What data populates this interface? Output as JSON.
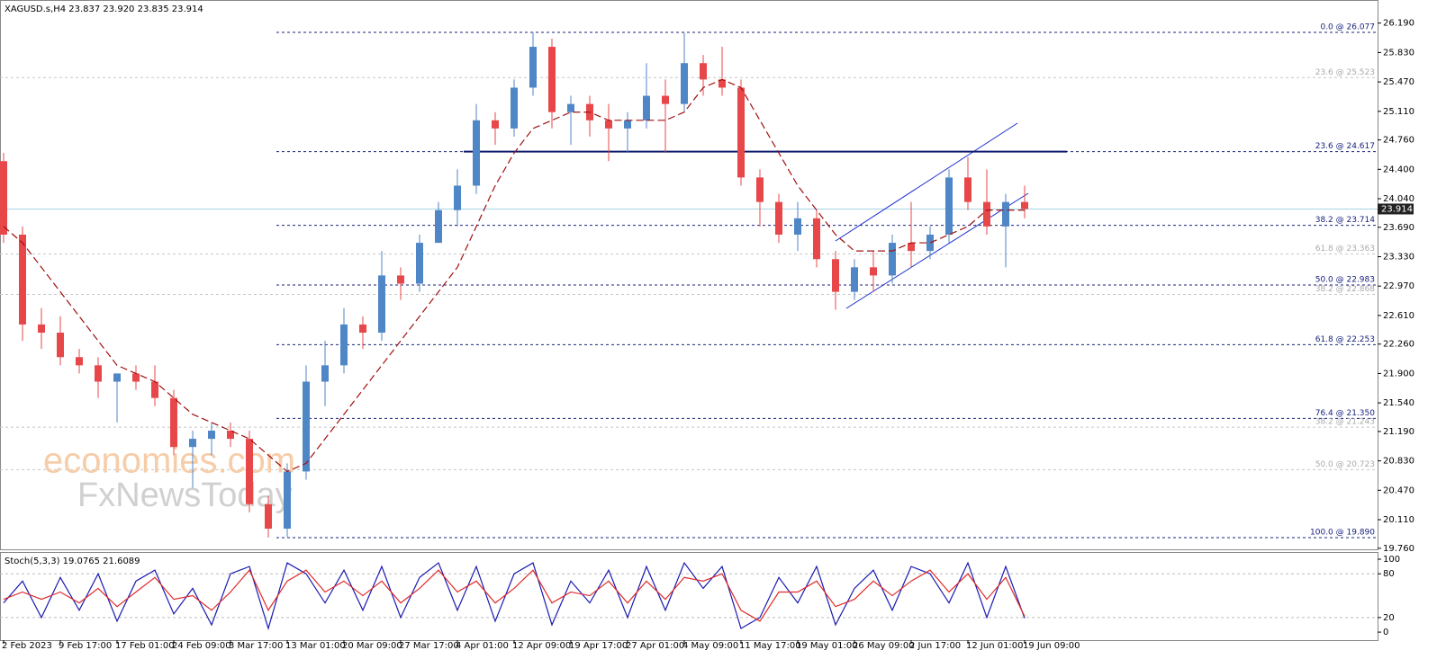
{
  "chart_data": {
    "type": "candlestick",
    "title": "XAGUSD.s,H4  23.837 23.920 23.835 23.914",
    "categories": [
      "2 Feb 2023",
      null,
      null,
      "9 Feb 17:00",
      null,
      null,
      "17 Feb 01:00",
      null,
      null,
      "24 Feb 09:00",
      null,
      null,
      "3 Mar 17:00",
      null,
      null,
      "13 Mar 01:00",
      null,
      null,
      "20 Mar 09:00",
      null,
      null,
      "27 Mar 17:00",
      null,
      null,
      "4 Apr 01:00",
      null,
      null,
      "12 Apr 09:00",
      null,
      null,
      "19 Apr 17:00",
      null,
      null,
      "27 Apr 01:00",
      null,
      null,
      "4 May 09:00",
      null,
      null,
      "11 May 17:00",
      null,
      null,
      "19 May 01:00",
      null,
      null,
      "26 May 09:00",
      null,
      null,
      "2 Jun 17:00",
      null,
      null,
      "12 Jun 01:00",
      null,
      null,
      "19 Jun 09:00"
    ],
    "open": [
      24.5,
      23.6,
      22.5,
      22.4,
      22.1,
      22.0,
      21.8,
      21.9,
      21.8,
      21.6,
      21.0,
      21.1,
      21.2,
      21.1,
      20.3,
      20.0,
      20.7,
      21.8,
      22.0,
      22.5,
      22.4,
      23.1,
      23.0,
      23.5,
      23.9,
      24.2,
      25.0,
      24.9,
      25.4,
      25.9,
      25.1,
      25.2,
      25.0,
      24.9,
      25.0,
      25.3,
      25.2,
      25.7,
      25.5,
      25.4,
      24.3,
      24.0,
      23.6,
      23.8,
      23.3,
      22.9,
      23.2,
      23.1,
      23.5,
      23.4,
      23.6,
      24.3,
      24.0,
      23.7,
      24.0
    ],
    "high": [
      24.6,
      23.7,
      22.7,
      22.6,
      22.2,
      22.1,
      21.9,
      22.0,
      22.0,
      21.7,
      21.2,
      21.3,
      21.3,
      21.2,
      20.4,
      20.8,
      22.0,
      22.3,
      22.7,
      22.6,
      23.4,
      23.2,
      23.6,
      24.0,
      24.4,
      25.2,
      25.1,
      25.5,
      26.077,
      26.0,
      25.3,
      25.3,
      25.2,
      25.1,
      25.7,
      25.5,
      26.07,
      25.8,
      25.9,
      25.5,
      24.4,
      24.1,
      24.0,
      23.9,
      23.4,
      23.3,
      23.4,
      23.6,
      24.0,
      23.7,
      24.4,
      24.55,
      24.4,
      24.1,
      24.2
    ],
    "low": [
      23.5,
      22.3,
      22.2,
      22.0,
      21.9,
      21.6,
      21.3,
      21.7,
      21.5,
      20.9,
      20.5,
      20.9,
      21.0,
      20.2,
      19.89,
      19.9,
      20.6,
      21.5,
      21.9,
      22.2,
      22.3,
      22.8,
      22.9,
      23.5,
      23.7,
      24.1,
      24.7,
      24.8,
      25.3,
      24.9,
      24.7,
      24.8,
      24.5,
      24.6,
      24.9,
      24.6,
      25.1,
      25.3,
      25.3,
      24.2,
      23.7,
      23.5,
      23.4,
      23.2,
      22.68,
      22.8,
      22.9,
      23.0,
      23.2,
      23.3,
      23.5,
      23.9,
      23.6,
      23.2,
      23.8
    ],
    "close": [
      23.6,
      22.5,
      22.4,
      22.1,
      22.0,
      21.8,
      21.9,
      21.8,
      21.6,
      21.0,
      21.1,
      21.2,
      21.1,
      20.3,
      20.0,
      20.7,
      21.8,
      22.0,
      22.5,
      22.4,
      23.1,
      23.0,
      23.5,
      23.9,
      24.2,
      25.0,
      24.9,
      25.4,
      25.9,
      25.1,
      25.2,
      25.0,
      24.9,
      25.0,
      25.3,
      25.2,
      25.7,
      25.5,
      25.4,
      24.3,
      24.0,
      23.6,
      23.8,
      23.3,
      22.9,
      23.2,
      23.1,
      23.5,
      23.4,
      23.6,
      24.3,
      24.0,
      23.7,
      24.0,
      23.914
    ],
    "up_color": "#4f86c6",
    "down_color": "#e8474a",
    "moving_average": {
      "color": "#a01010",
      "values": [
        23.7,
        23.5,
        23.2,
        22.9,
        22.6,
        22.3,
        22.0,
        21.9,
        21.8,
        21.6,
        21.4,
        21.3,
        21.2,
        21.1,
        20.9,
        20.7,
        20.8,
        21.1,
        21.4,
        21.7,
        22.0,
        22.3,
        22.6,
        22.9,
        23.2,
        23.7,
        24.2,
        24.6,
        24.9,
        25.0,
        25.1,
        25.1,
        25.0,
        25.0,
        25.0,
        25.0,
        25.1,
        25.4,
        25.5,
        25.4,
        25.0,
        24.6,
        24.2,
        23.9,
        23.6,
        23.4,
        23.4,
        23.4,
        23.5,
        23.5,
        23.6,
        23.7,
        23.9,
        23.9,
        23.9
      ]
    },
    "ylim": [
      19.758,
      26.44
    ],
    "yticks": [
      {
        "value": 26.19,
        "label": "26.190"
      },
      {
        "value": 25.83,
        "label": "25.830"
      },
      {
        "value": 25.47,
        "label": "25.470"
      },
      {
        "value": 25.11,
        "label": "25.110"
      },
      {
        "value": 24.76,
        "label": "24.760"
      },
      {
        "value": 24.4,
        "label": "24.400"
      },
      {
        "value": 24.04,
        "label": "24.040"
      },
      {
        "value": 23.69,
        "label": "23.690"
      },
      {
        "value": 23.33,
        "label": "23.330"
      },
      {
        "value": 22.97,
        "label": "22.970"
      },
      {
        "value": 22.61,
        "label": "22.610"
      },
      {
        "value": 22.26,
        "label": "22.260"
      },
      {
        "value": 21.9,
        "label": "21.900"
      },
      {
        "value": 21.54,
        "label": "21.540"
      },
      {
        "value": 21.19,
        "label": "21.190"
      },
      {
        "value": 20.83,
        "label": "20.830"
      },
      {
        "value": 20.47,
        "label": "20.470"
      },
      {
        "value": 20.11,
        "label": "20.110"
      },
      {
        "value": 19.76,
        "label": "19.760"
      }
    ],
    "last_price": 23.914,
    "fib_major": [
      {
        "label": "0.0 @ 26.077",
        "value": 26.077
      },
      {
        "label": "23.6 @ 24.617",
        "value": 24.617
      },
      {
        "label": "38.2 @ 23.714",
        "value": 23.714
      },
      {
        "label": "50.0 @ 22.983",
        "value": 22.983
      },
      {
        "label": "61.8 @ 22.253",
        "value": 22.253
      },
      {
        "label": "76.4 @ 21.350",
        "value": 21.35
      },
      {
        "label": "100.0 @ 19.890",
        "value": 19.89
      }
    ],
    "fib_minor": [
      {
        "label": "23.6 @ 25.523",
        "value": 25.523
      },
      {
        "label": "61.8 @ 23.363",
        "value": 23.363
      },
      {
        "label": "38.2 @ 22.868",
        "value": 22.868
      },
      {
        "label": "38.2 @ 21.243",
        "value": 21.243
      },
      {
        "label": "50.0 @ 20.723",
        "value": 20.723
      }
    ],
    "watermark": [
      "economies.com",
      "FxNewsToday"
    ],
    "stochastic": {
      "title": "Stoch(5,3,3) 19.0765 21.6089",
      "ylim": [
        -11,
        107.4
      ],
      "yticks": [
        100,
        80,
        20,
        0
      ],
      "levels": [
        80,
        20
      ],
      "series": [
        {
          "color": "#1a1ab0",
          "values": [
            40,
            70,
            20,
            75,
            30,
            80,
            15,
            70,
            85,
            25,
            60,
            10,
            80,
            90,
            5,
            95,
            80,
            40,
            85,
            30,
            90,
            20,
            75,
            95,
            30,
            90,
            15,
            80,
            95,
            10,
            70,
            40,
            85,
            20,
            90,
            30,
            95,
            60,
            90,
            5,
            20,
            75,
            40,
            90,
            10,
            60,
            85,
            30,
            90,
            80,
            40,
            95,
            20,
            90,
            19.0765
          ]
        },
        {
          "color": "#e02a2a",
          "values": [
            45,
            55,
            45,
            55,
            40,
            60,
            35,
            55,
            75,
            45,
            50,
            30,
            55,
            85,
            30,
            70,
            85,
            55,
            70,
            50,
            70,
            40,
            60,
            85,
            55,
            70,
            40,
            60,
            85,
            40,
            55,
            50,
            70,
            40,
            70,
            45,
            75,
            70,
            80,
            30,
            15,
            55,
            55,
            70,
            35,
            45,
            70,
            50,
            70,
            85,
            55,
            80,
            45,
            75,
            21.6089
          ]
        }
      ]
    }
  }
}
